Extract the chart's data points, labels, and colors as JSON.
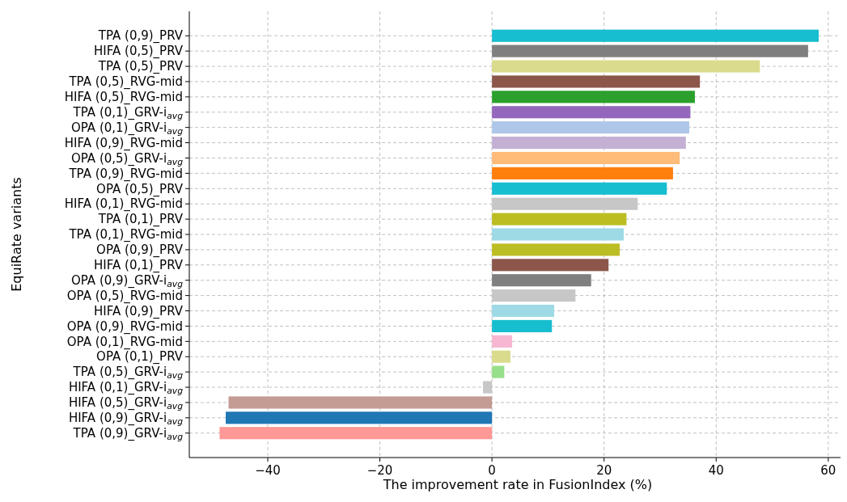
{
  "chart_data": {
    "type": "bar",
    "orientation": "horizontal",
    "xlabel": "The improvement rate in FusionIndex (%)",
    "ylabel": "EquiRate variants",
    "categories": [
      "TPA (0,9)_PRV",
      "HIFA (0,5)_PRV",
      "TPA (0,5)_PRV",
      "TPA (0,5)_RVG-mid",
      "HIFA (0,5)_RVG-mid",
      "TPA (0,1)_GRV-i$_{avg}$",
      "OPA (0,1)_GRV-i$_{avg}$",
      "HIFA (0,9)_RVG-mid",
      "OPA (0,5)_GRV-i$_{avg}$",
      "TPA (0,9)_RVG-mid",
      "OPA (0,5)_PRV",
      "HIFA (0,1)_RVG-mid",
      "TPA (0,1)_PRV",
      "TPA (0,1)_RVG-mid",
      "OPA (0,9)_PRV",
      "HIFA (0,1)_PRV",
      "OPA (0,9)_GRV-i$_{avg}$",
      "OPA (0,5)_RVG-mid",
      "HIFA (0,9)_PRV",
      "OPA (0,9)_RVG-mid",
      "OPA (0,1)_RVG-mid",
      "OPA (0,1)_PRV",
      "TPA (0,5)_GRV-i$_{avg}$",
      "HIFA (0,1)_GRV-i$_{avg}$",
      "HIFA (0,5)_GRV-i$_{avg}$",
      "HIFA (0,9)_GRV-i$_{avg}$",
      "TPA (0,9)_GRV-i$_{avg}$"
    ],
    "values": [
      58.3,
      56.4,
      47.8,
      37.1,
      36.2,
      35.4,
      35.2,
      34.6,
      33.5,
      32.3,
      31.2,
      26.0,
      24.0,
      23.5,
      22.8,
      20.8,
      17.7,
      14.9,
      11.1,
      10.7,
      3.6,
      3.3,
      2.2,
      -1.6,
      -47.0,
      -47.5,
      -48.6
    ],
    "colors": [
      "#17becf",
      "#7f7f7f",
      "#dbdb8d",
      "#8c564b",
      "#2ca02c",
      "#9467bd",
      "#aec7e8",
      "#c5b0d5",
      "#ffbb78",
      "#ff7f0e",
      "#17becf",
      "#c7c7c7",
      "#bcbd22",
      "#9edae5",
      "#bcbd22",
      "#8c564b",
      "#7f7f7f",
      "#c7c7c7",
      "#9edae5",
      "#17becf",
      "#f7b6d2",
      "#dbdb8d",
      "#98df8a",
      "#c7c7c7",
      "#c49c94",
      "#1f77b4",
      "#ff9896"
    ],
    "xlim": [
      -54,
      63.2
    ],
    "xticks": [
      {
        "value": -40,
        "label": "−40"
      },
      {
        "value": -20,
        "label": "−20"
      },
      0,
      20,
      40,
      60
    ],
    "grid": true
  }
}
